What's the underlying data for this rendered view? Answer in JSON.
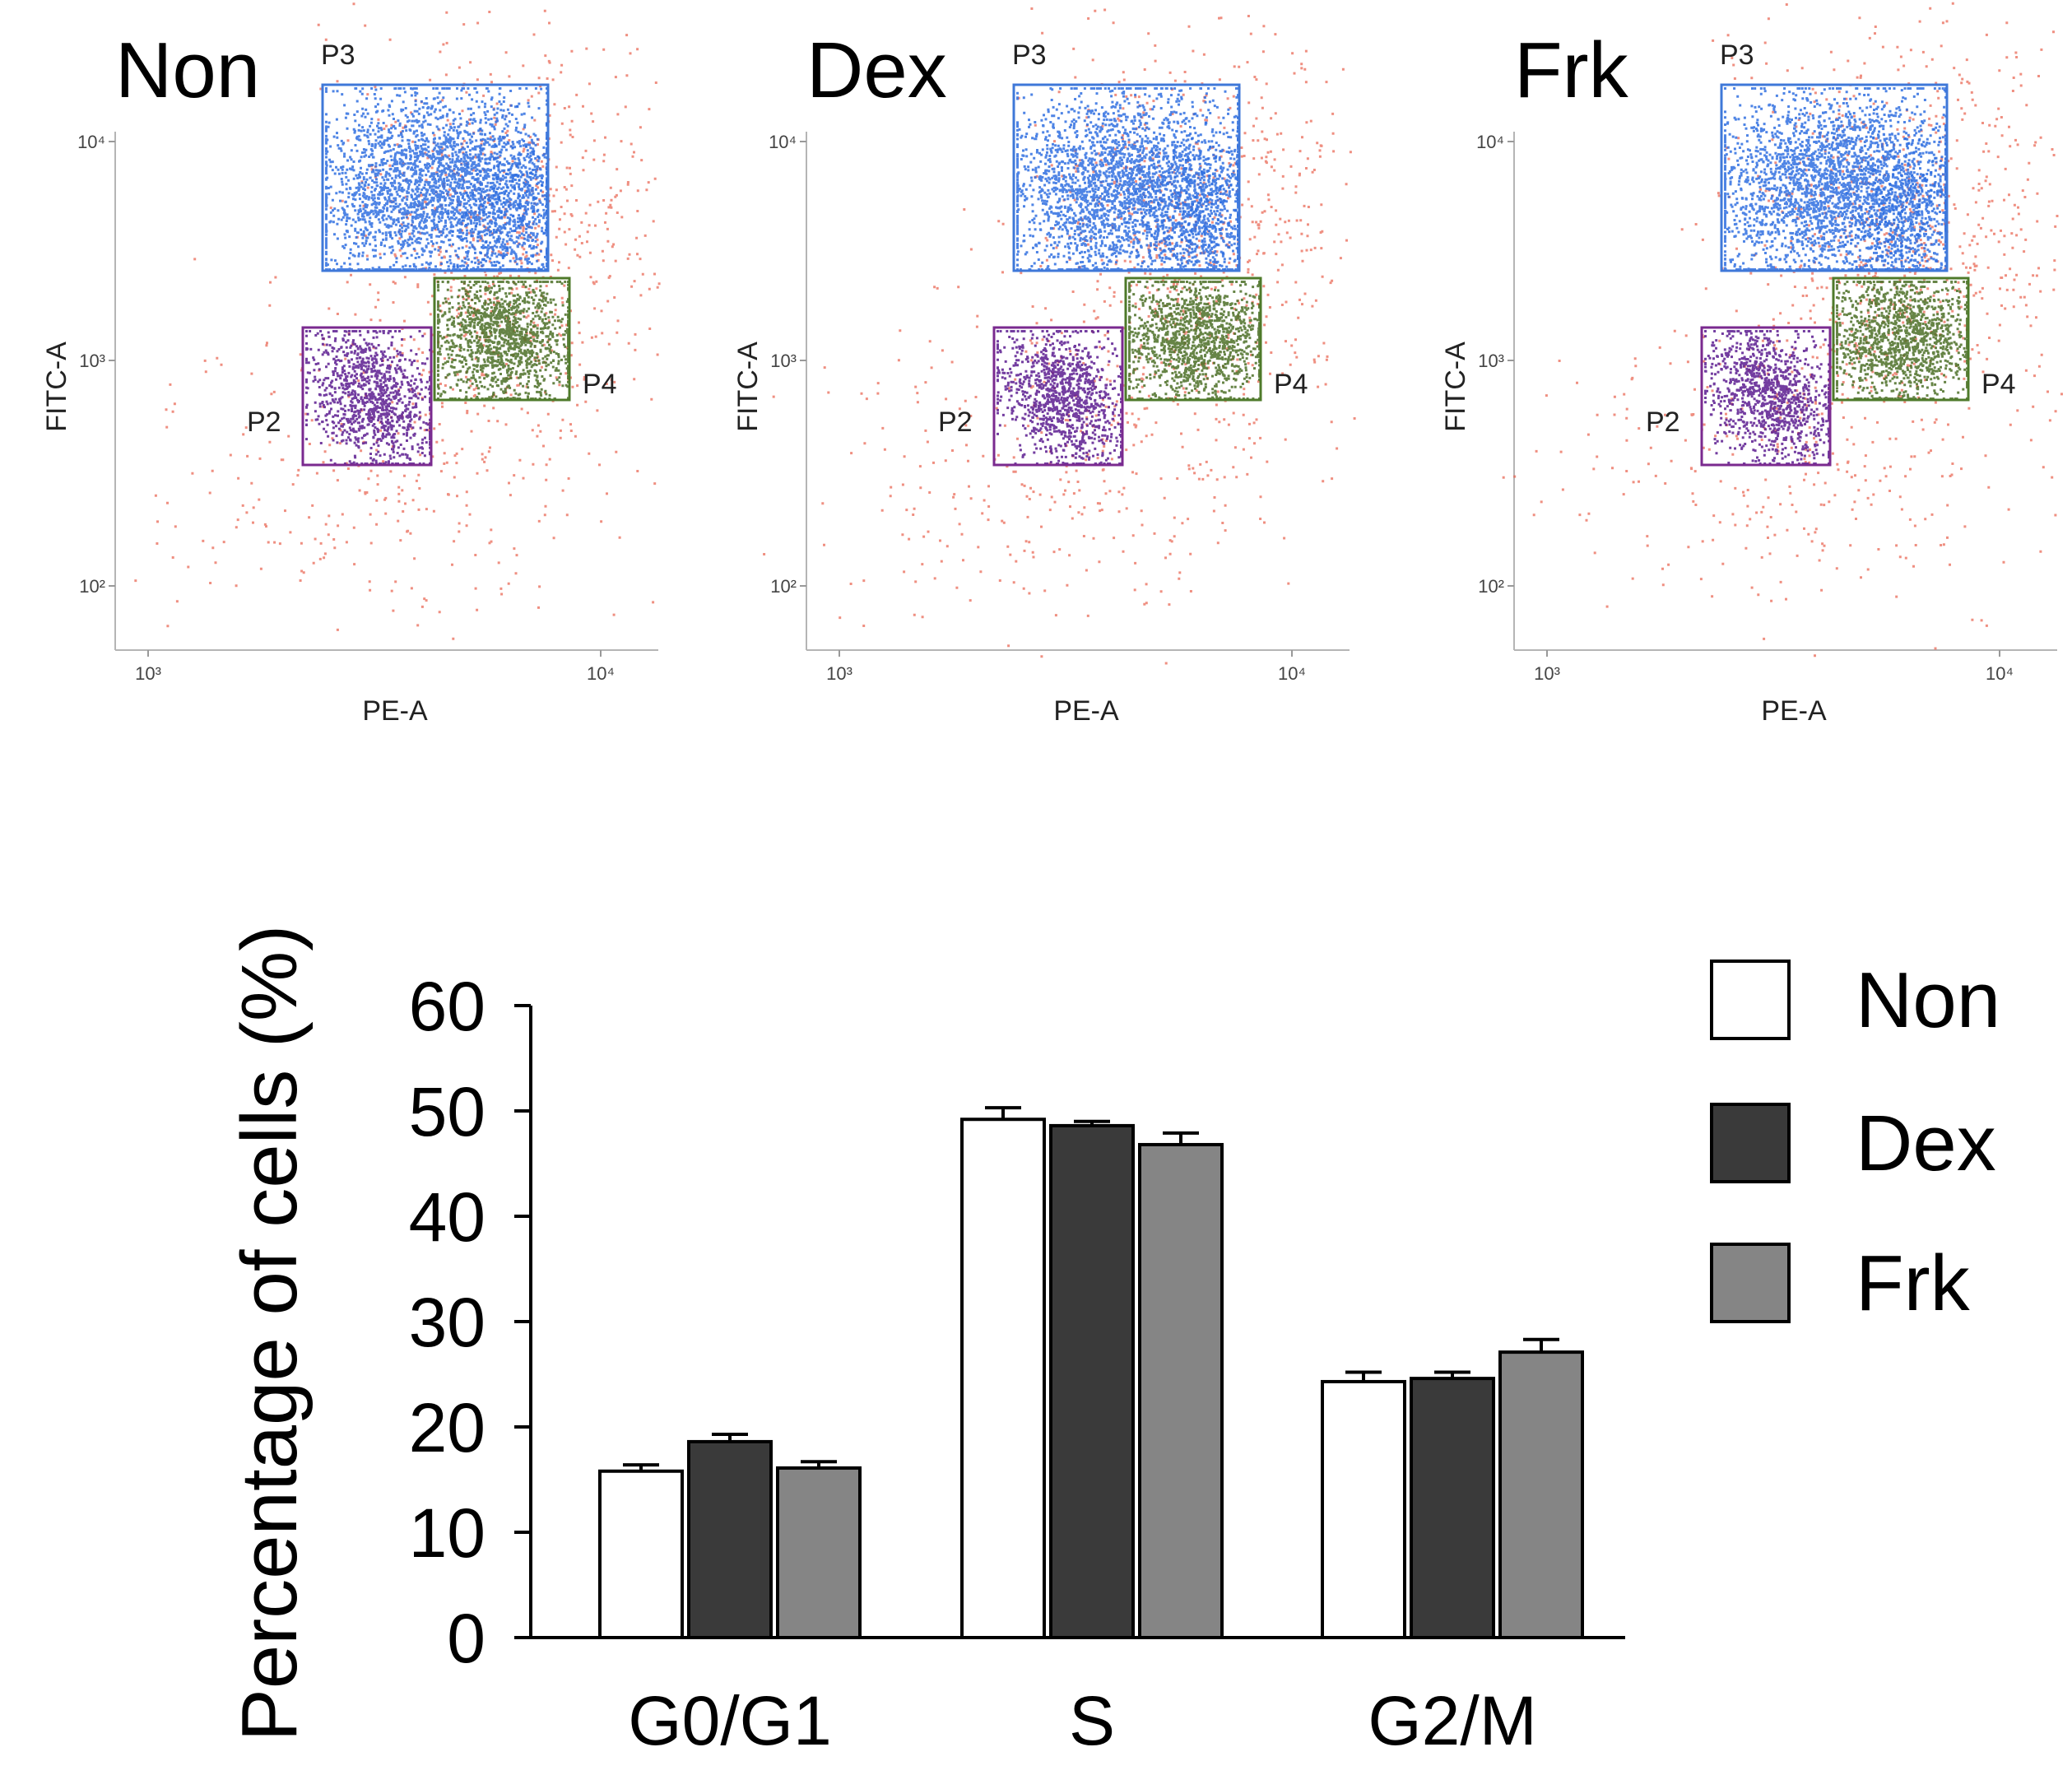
{
  "flow_panels": [
    {
      "title": "Non",
      "xlabel": "PE-A",
      "ylabel": "FITC-A",
      "x_ticks": [
        "10³",
        "10⁴"
      ],
      "y_ticks": [
        "10²",
        "10³",
        "10⁴"
      ],
      "gates": [
        {
          "label": "P3",
          "color": "#3f78d8"
        },
        {
          "label": "P2",
          "color": "#7a2a8f"
        },
        {
          "label": "P4",
          "color": "#4e7a2a"
        }
      ]
    },
    {
      "title": "Dex",
      "xlabel": "PE-A",
      "ylabel": "FITC-A",
      "x_ticks": [
        "10³",
        "10⁴"
      ],
      "y_ticks": [
        "10²",
        "10³",
        "10⁴"
      ],
      "gates": [
        {
          "label": "P3",
          "color": "#3f78d8"
        },
        {
          "label": "P2",
          "color": "#7a2a8f"
        },
        {
          "label": "P4",
          "color": "#4e7a2a"
        }
      ]
    },
    {
      "title": "Frk",
      "xlabel": "PE-A",
      "ylabel": "FITC-A",
      "x_ticks": [
        "10³",
        "10⁴"
      ],
      "y_ticks": [
        "10²",
        "10³",
        "10⁴"
      ],
      "gates": [
        {
          "label": "P3",
          "color": "#3f78d8"
        },
        {
          "label": "P2",
          "color": "#7a2a8f"
        },
        {
          "label": "P4",
          "color": "#4e7a2a"
        }
      ]
    }
  ],
  "dot_colors": {
    "P3": "#2f6fe0",
    "P2": "#5b1b8f",
    "P4": "#4b6e26",
    "other": "#e8604c"
  },
  "chart_data": {
    "type": "bar",
    "categories": [
      "G0/G1",
      "S",
      "G2/M"
    ],
    "series": [
      {
        "name": "Non",
        "values": [
          15.8,
          49.2,
          24.3
        ],
        "errors": [
          0.6,
          1.1,
          0.9
        ],
        "color": "#ffffff"
      },
      {
        "name": "Dex",
        "values": [
          18.6,
          48.6,
          24.6
        ],
        "errors": [
          0.7,
          0.4,
          0.6
        ],
        "color": "#3a3a3a"
      },
      {
        "name": "Frk",
        "values": [
          16.1,
          46.8,
          27.1
        ],
        "errors": [
          0.6,
          1.1,
          1.2
        ],
        "color": "#858585"
      }
    ],
    "ylabel": "Percentage of cells   (%)",
    "ylim": [
      0,
      60
    ],
    "yticks": [
      0,
      10,
      20,
      30,
      40,
      50,
      60
    ],
    "legend": "right",
    "grid": false
  }
}
